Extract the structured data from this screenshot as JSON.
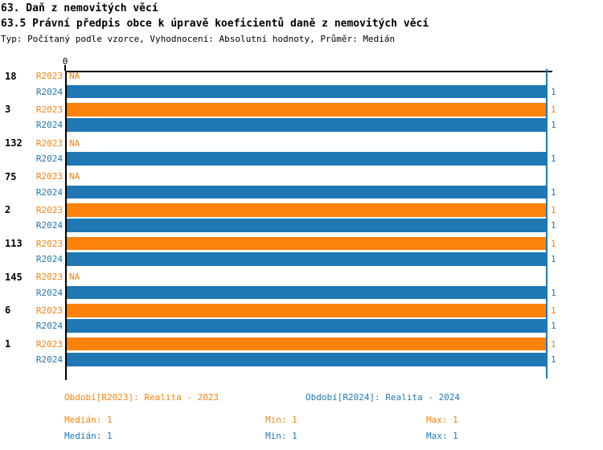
{
  "header": {
    "title": "63. Daň z nemovitých věcí",
    "subtitle": "63.5 Právní předpis obce k úpravě koeficientů daně z nemovitých věcí",
    "meta": "Typ: Počítaný podle vzorce, Vyhodnocení: Absolutní hodnoty, Průměr: Medián"
  },
  "chart_data": {
    "type": "bar",
    "orientation": "horizontal",
    "x_axis": {
      "tick_label": "0",
      "range": [
        0,
        1
      ],
      "gridline_value": 1,
      "grid": "single value line at 1"
    },
    "na_label": "NA",
    "categories": [
      "18",
      "3",
      "132",
      "75",
      "2",
      "113",
      "145",
      "6",
      "1"
    ],
    "series": [
      {
        "name": "R2023",
        "color": "#fc820a",
        "values": [
          null,
          1,
          null,
          null,
          1,
          1,
          null,
          1,
          1
        ]
      },
      {
        "name": "R2024",
        "color": "#1f77b4",
        "values": [
          1,
          1,
          1,
          1,
          1,
          1,
          1,
          1,
          1
        ]
      }
    ],
    "value_label": "1"
  },
  "legend": {
    "r2023": {
      "label": "Období[R2023]: Realita - 2023",
      "stats": [
        "Medián: 1",
        "Min: 1",
        "Max: 1"
      ]
    },
    "r2024": {
      "label": "Období[R2024]: Realita - 2024",
      "stats": [
        "Medián: 1",
        "Min: 1",
        "Max: 1"
      ]
    }
  },
  "colors": {
    "r2023": "#fc820a",
    "r2024": "#1f77b4",
    "axis": "#000000"
  }
}
